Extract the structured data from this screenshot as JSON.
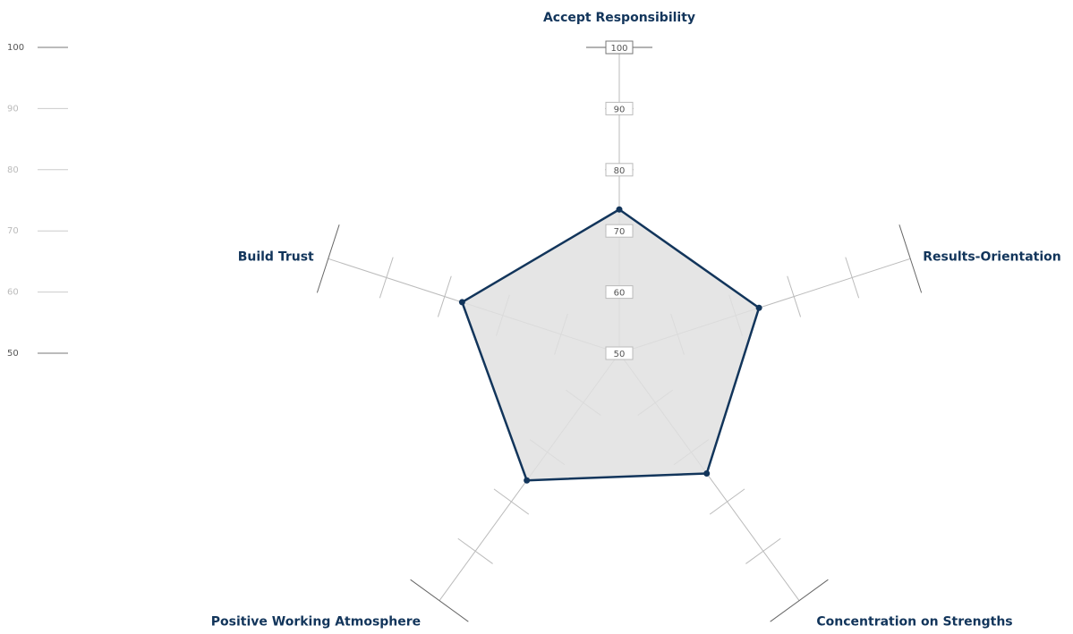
{
  "chart_data": {
    "type": "radar",
    "categories": [
      "Accept Responsibility",
      "Results-Orientation",
      "Concentration on Strengths",
      "Positive Working Atmosphere",
      "Build Trust"
    ],
    "values": [
      73.5,
      74,
      74.3,
      75.7,
      77
    ],
    "color": "#12355b",
    "fill": "#e0e0e0",
    "rlim": [
      50,
      100
    ],
    "rticks": [
      50,
      60,
      70,
      80,
      90,
      100
    ]
  }
}
